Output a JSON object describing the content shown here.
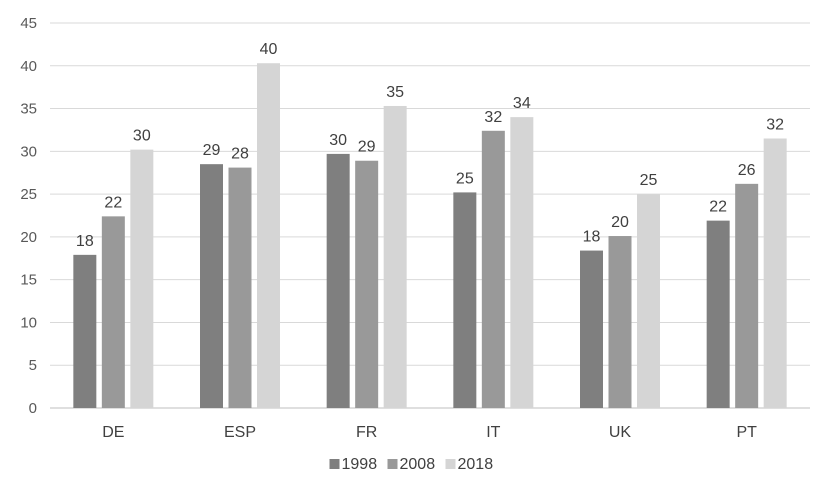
{
  "chart_data": {
    "type": "bar",
    "title": "",
    "xlabel": "",
    "ylabel": "",
    "categories": [
      "DE",
      "ESP",
      "FR",
      "IT",
      "UK",
      "PT"
    ],
    "series": [
      {
        "name": "1998",
        "values": [
          18,
          29,
          30,
          25,
          18,
          22
        ],
        "color": "#7f7f7f"
      },
      {
        "name": "2008",
        "values": [
          22,
          28,
          29,
          32,
          20,
          26
        ],
        "color": "#999999"
      },
      {
        "name": "2018",
        "values": [
          30,
          40,
          35,
          34,
          25,
          32
        ],
        "color": "#d5d5d5"
      }
    ],
    "bar_heights": [
      [
        17.9,
        28.5,
        29.7,
        25.2,
        18.4,
        21.9
      ],
      [
        22.4,
        28.1,
        28.9,
        32.4,
        20.1,
        26.2
      ],
      [
        30.2,
        40.3,
        35.3,
        34.0,
        25.0,
        31.5
      ]
    ],
    "ylim": [
      0,
      45
    ],
    "yticks": [
      0,
      5,
      10,
      15,
      20,
      25,
      30,
      35,
      40,
      45
    ],
    "grid": true,
    "legend_position": "bottom-center"
  }
}
